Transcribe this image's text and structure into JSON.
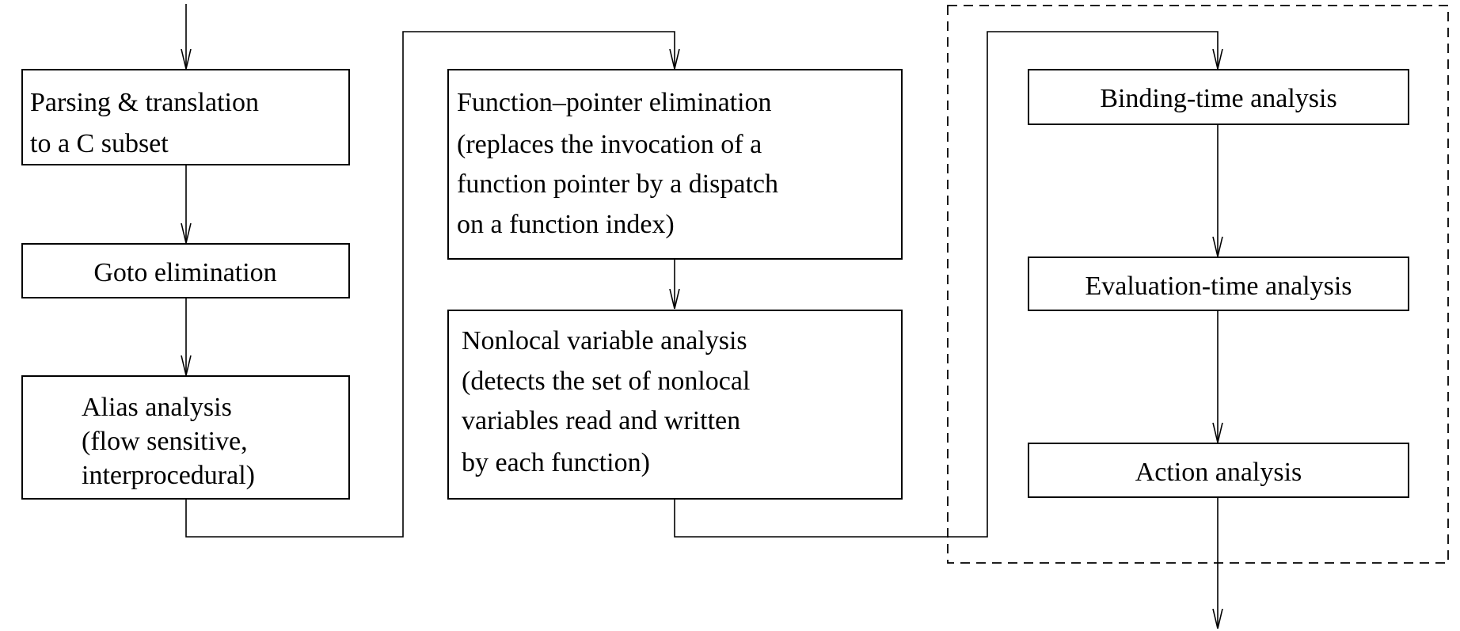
{
  "boxes": {
    "parsing": {
      "lines": [
        "Parsing & translation",
        "to a C subset"
      ]
    },
    "goto": {
      "lines": [
        "Goto elimination"
      ]
    },
    "alias": {
      "lines": [
        "Alias analysis",
        "(flow sensitive,",
        "interprocedural)"
      ]
    },
    "funcptr": {
      "lines": [
        "Function–pointer elimination",
        "(replaces the invocation of a",
        "function pointer by a dispatch",
        "on a function index)"
      ]
    },
    "nonlocal": {
      "lines": [
        "Nonlocal variable analysis",
        "(detects the set of nonlocal",
        "variables read and written",
        "by each function)"
      ]
    },
    "binding": {
      "lines": [
        "Binding-time analysis"
      ]
    },
    "evaluation": {
      "lines": [
        "Evaluation-time analysis"
      ]
    },
    "action": {
      "lines": [
        "Action analysis"
      ]
    }
  }
}
